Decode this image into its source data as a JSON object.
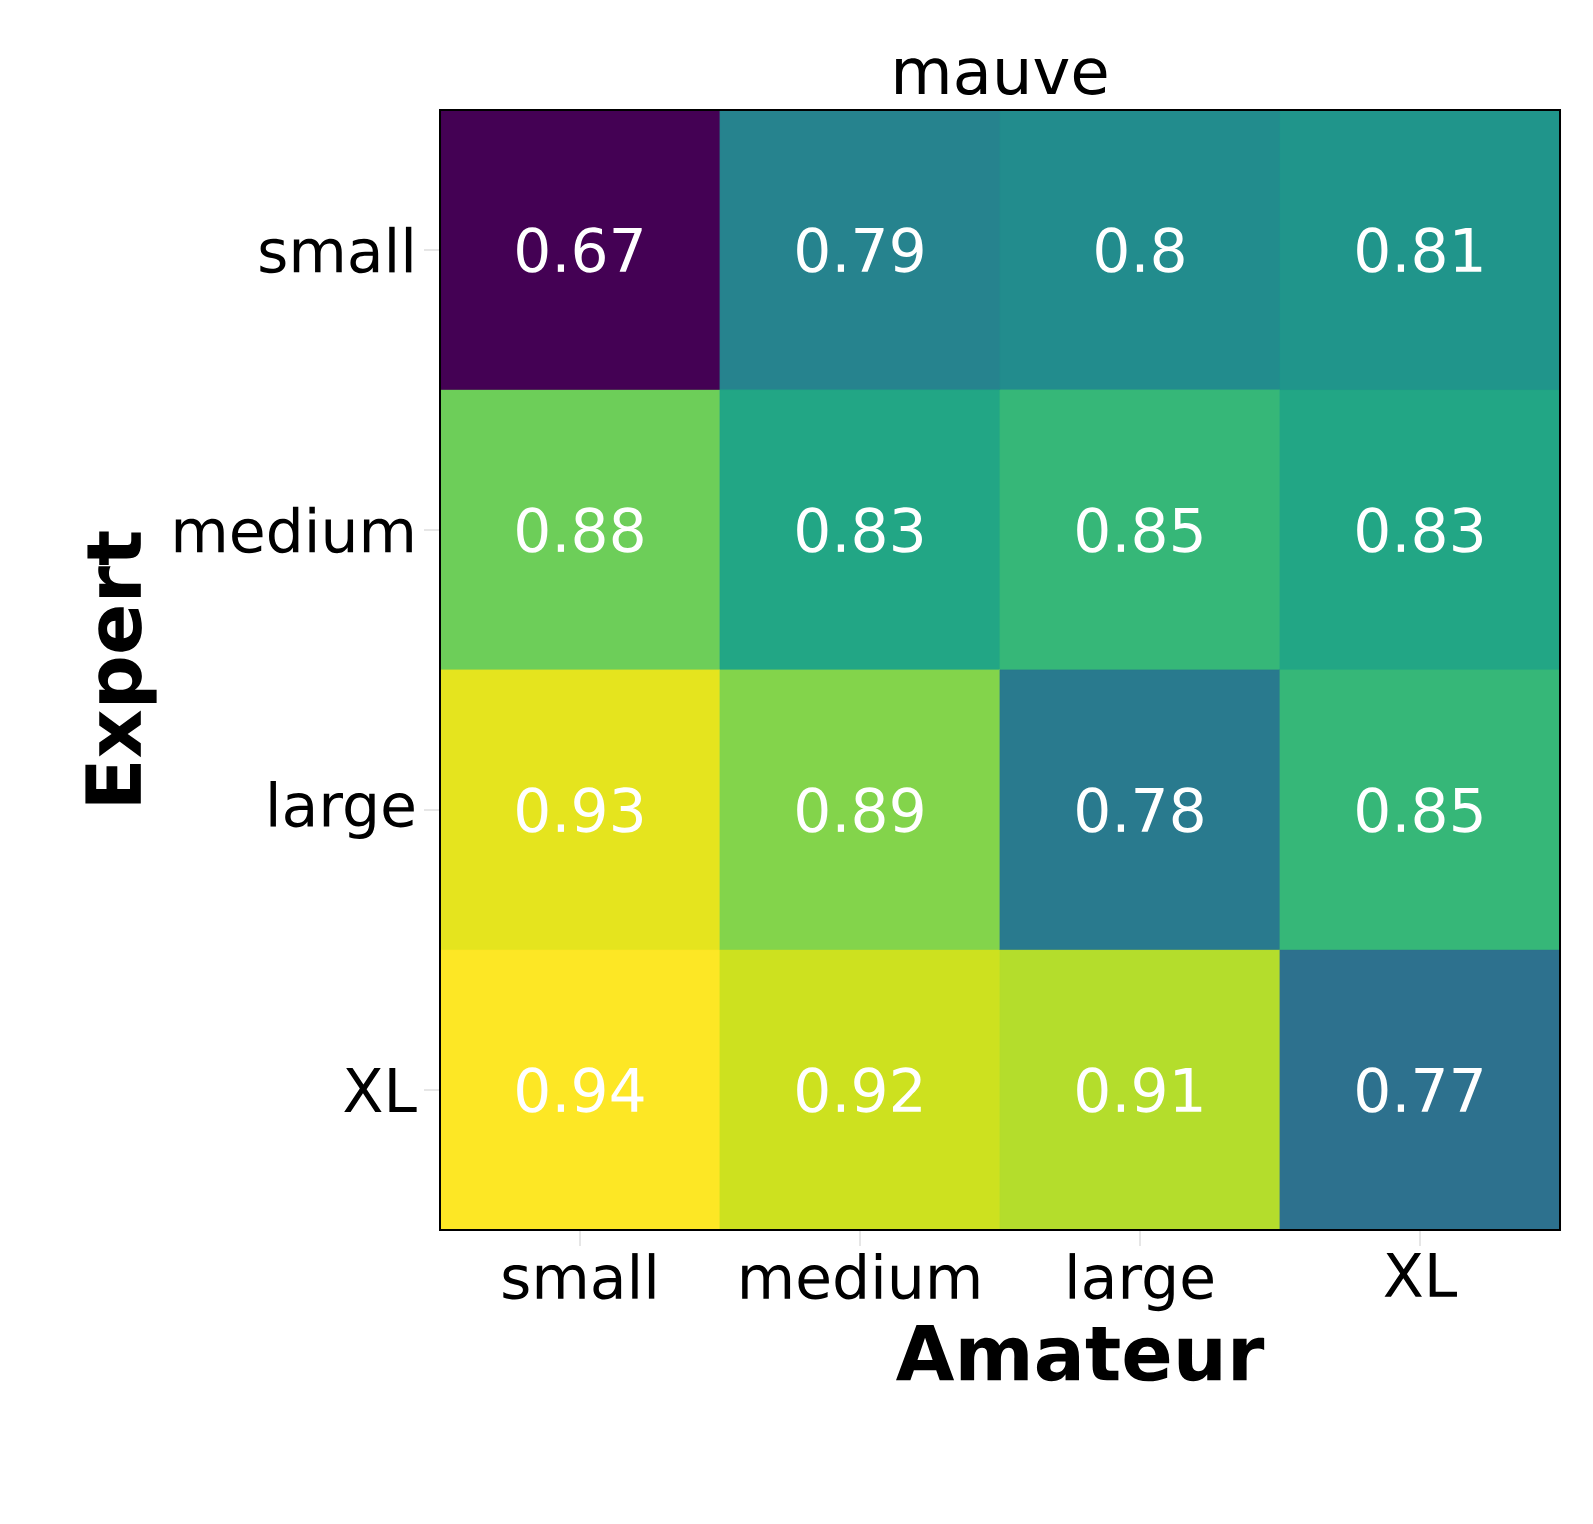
{
  "chart_data": {
    "type": "heatmap",
    "title": "mauve",
    "xlabel": "Amateur",
    "ylabel": "Expert",
    "categories": [
      "small",
      "medium",
      "large",
      "XL"
    ],
    "y_categories": [
      "small",
      "medium",
      "large",
      "XL"
    ],
    "cells": [
      [
        0.67,
        0.79,
        0.8,
        0.81
      ],
      [
        0.88,
        0.83,
        0.85,
        0.83
      ],
      [
        0.93,
        0.89,
        0.78,
        0.85
      ],
      [
        0.94,
        0.92,
        0.91,
        0.77
      ]
    ],
    "data_labels": true
  }
}
